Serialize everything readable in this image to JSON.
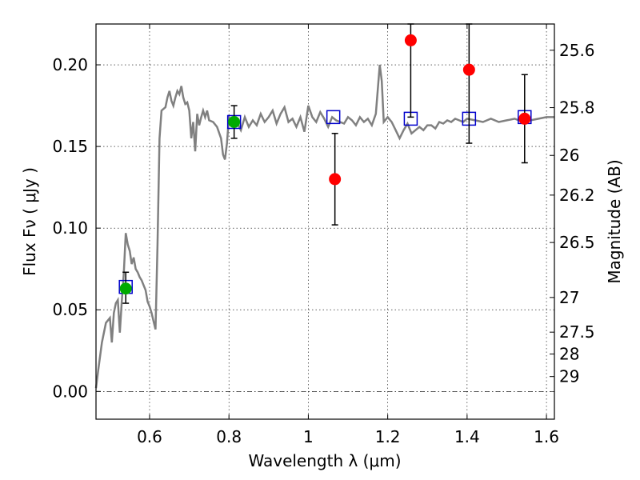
{
  "chart_data": {
    "type": "scatter",
    "xlabel": "Wavelength  λ (μm)",
    "ylabel": "Flux  Fν  ( μJy )",
    "y2label": "Magnitude (AB)",
    "xlim": [
      0.465,
      1.62
    ],
    "ylim": [
      -0.017,
      0.225
    ],
    "x_ticks": [
      0.6,
      0.8,
      1.0,
      1.2,
      1.4,
      1.6
    ],
    "x_tick_labels": [
      "0.6",
      "0.8",
      "1",
      "1.2",
      "1.4",
      "1.6"
    ],
    "y_ticks": [
      0.0,
      0.05,
      0.1,
      0.15,
      0.2
    ],
    "y_tick_labels": [
      "0.00",
      "0.05",
      "0.10",
      "0.15",
      "0.20"
    ],
    "mag_ticks": [
      25.6,
      25.8,
      26,
      26.2,
      26.5,
      27,
      27.5,
      28,
      29
    ],
    "mag_tick_labels": [
      "25.6",
      "25.8",
      "26",
      "26.2",
      "26.5",
      "27",
      "27.5",
      "28",
      "29"
    ],
    "grid": true,
    "colors": {
      "spectrum": "#808080",
      "model_points": "#0000cc",
      "detections": "#00aa00",
      "nondetections": "#ff0000",
      "errorbars": "#000000"
    },
    "series": [
      {
        "kind": "line",
        "x": [
          0.465,
          0.47,
          0.48,
          0.49,
          0.5,
          0.505,
          0.51,
          0.515,
          0.52,
          0.525,
          0.53,
          0.535,
          0.54,
          0.545,
          0.55,
          0.555,
          0.56,
          0.565,
          0.57,
          0.575,
          0.58,
          0.585,
          0.59,
          0.595,
          0.6,
          0.605,
          0.61,
          0.615,
          0.62,
          0.625,
          0.63,
          0.64,
          0.645,
          0.65,
          0.655,
          0.66,
          0.665,
          0.67,
          0.675,
          0.68,
          0.685,
          0.69,
          0.695,
          0.7,
          0.705,
          0.71,
          0.715,
          0.72,
          0.725,
          0.73,
          0.735,
          0.74,
          0.745,
          0.75,
          0.76,
          0.77,
          0.78,
          0.785,
          0.79,
          0.795,
          0.8,
          0.81,
          0.815,
          0.82,
          0.83,
          0.84,
          0.85,
          0.86,
          0.87,
          0.88,
          0.89,
          0.9,
          0.91,
          0.92,
          0.93,
          0.94,
          0.95,
          0.96,
          0.97,
          0.98,
          0.99,
          1.0,
          1.01,
          1.02,
          1.03,
          1.04,
          1.05,
          1.06,
          1.07,
          1.08,
          1.09,
          1.1,
          1.11,
          1.12,
          1.13,
          1.14,
          1.15,
          1.16,
          1.17,
          1.18,
          1.185,
          1.19,
          1.2,
          1.21,
          1.22,
          1.23,
          1.24,
          1.25,
          1.26,
          1.27,
          1.28,
          1.29,
          1.3,
          1.31,
          1.32,
          1.33,
          1.34,
          1.35,
          1.36,
          1.37,
          1.38,
          1.39,
          1.4,
          1.42,
          1.44,
          1.46,
          1.48,
          1.5,
          1.52,
          1.54,
          1.56,
          1.58,
          1.6,
          1.62
        ],
        "y": [
          0.002,
          0.012,
          0.03,
          0.042,
          0.045,
          0.03,
          0.048,
          0.054,
          0.056,
          0.036,
          0.055,
          0.072,
          0.097,
          0.09,
          0.086,
          0.078,
          0.082,
          0.075,
          0.073,
          0.07,
          0.068,
          0.065,
          0.062,
          0.055,
          0.052,
          0.048,
          0.043,
          0.038,
          0.09,
          0.155,
          0.172,
          0.174,
          0.18,
          0.184,
          0.178,
          0.175,
          0.18,
          0.184,
          0.182,
          0.187,
          0.18,
          0.176,
          0.177,
          0.172,
          0.155,
          0.165,
          0.147,
          0.17,
          0.163,
          0.168,
          0.172,
          0.168,
          0.172,
          0.166,
          0.165,
          0.162,
          0.155,
          0.145,
          0.142,
          0.152,
          0.168,
          0.165,
          0.163,
          0.165,
          0.16,
          0.168,
          0.162,
          0.166,
          0.163,
          0.17,
          0.165,
          0.168,
          0.172,
          0.164,
          0.17,
          0.174,
          0.165,
          0.167,
          0.162,
          0.168,
          0.159,
          0.175,
          0.168,
          0.165,
          0.171,
          0.167,
          0.162,
          0.168,
          0.166,
          0.165,
          0.164,
          0.168,
          0.166,
          0.163,
          0.168,
          0.165,
          0.167,
          0.163,
          0.17,
          0.2,
          0.19,
          0.165,
          0.168,
          0.165,
          0.16,
          0.155,
          0.16,
          0.164,
          0.158,
          0.16,
          0.162,
          0.16,
          0.163,
          0.163,
          0.161,
          0.165,
          0.164,
          0.166,
          0.165,
          0.167,
          0.166,
          0.165,
          0.167,
          0.166,
          0.165,
          0.167,
          0.165,
          0.166,
          0.167,
          0.165,
          0.166,
          0.167,
          0.168,
          0.168
        ]
      },
      {
        "kind": "open-square",
        "x": [
          0.54,
          0.813,
          1.063,
          1.258,
          1.405,
          1.545
        ],
        "y": [
          0.064,
          0.165,
          0.168,
          0.167,
          0.167,
          0.168
        ]
      },
      {
        "kind": "filled-circle",
        "x": [
          0.54,
          0.813
        ],
        "y": [
          0.063,
          0.165
        ],
        "yerr_low": [
          0.009,
          0.01
        ],
        "yerr_high": [
          0.01,
          0.01
        ]
      },
      {
        "kind": "filled-circle",
        "x": [
          1.067,
          1.258,
          1.405,
          1.545
        ],
        "y": [
          0.13,
          0.215,
          0.197,
          0.167
        ],
        "yerr_low": [
          0.028,
          0.047,
          0.045,
          0.027
        ],
        "yerr_high": [
          0.028,
          0.033,
          0.045,
          0.027
        ]
      }
    ]
  }
}
